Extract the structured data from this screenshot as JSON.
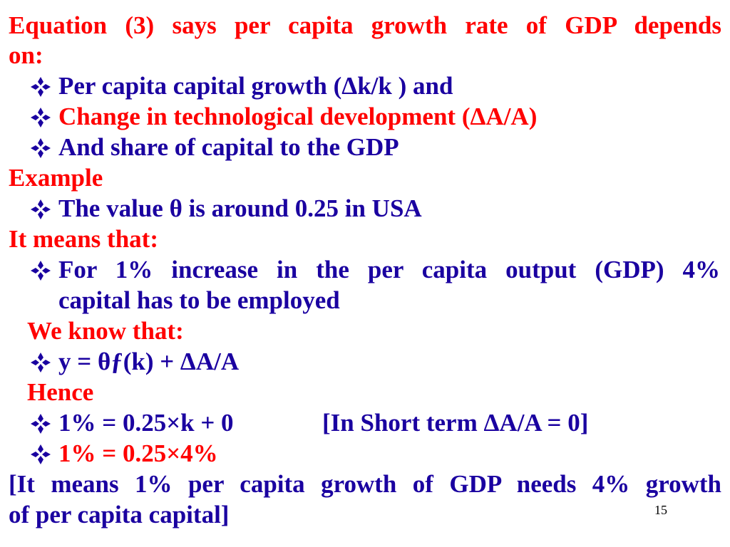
{
  "slide": {
    "intro": {
      "line1": "Equation (3) says per capita growth rate of GDP depends",
      "line2": "on:"
    },
    "factors": [
      "Per capita capital growth (Δk/k ) and",
      "Change in technological development (ΔA/A)",
      "And share of capital to the GDP"
    ],
    "example_heading": "Example",
    "example_bullet": "The value θ is around 0.25 in USA",
    "means_heading": "It means that:",
    "means_bullet": {
      "line1": "For 1% increase in the per capita output (GDP) 4%",
      "line2": "capital has to be employed"
    },
    "we_know_heading": "We know that:",
    "formula": "y = θƒ(k) + ΔA/A",
    "hence_heading": "Hence",
    "step1": {
      "equation": "1% = 0.25×k + 0",
      "note": "[In Short term ΔA/A = 0]"
    },
    "step2": "1% = 0.25×4%",
    "conclusion": {
      "line1": "[It means 1% per capita growth of GDP needs 4% growth",
      "line2": "of per capita capital]"
    },
    "page_number": "15"
  },
  "colors": {
    "red": "#ff0000",
    "navy": "#1a00a0",
    "bullet": "#1a00a0"
  },
  "icons": {
    "bullet": "diamond-bullet-icon"
  }
}
